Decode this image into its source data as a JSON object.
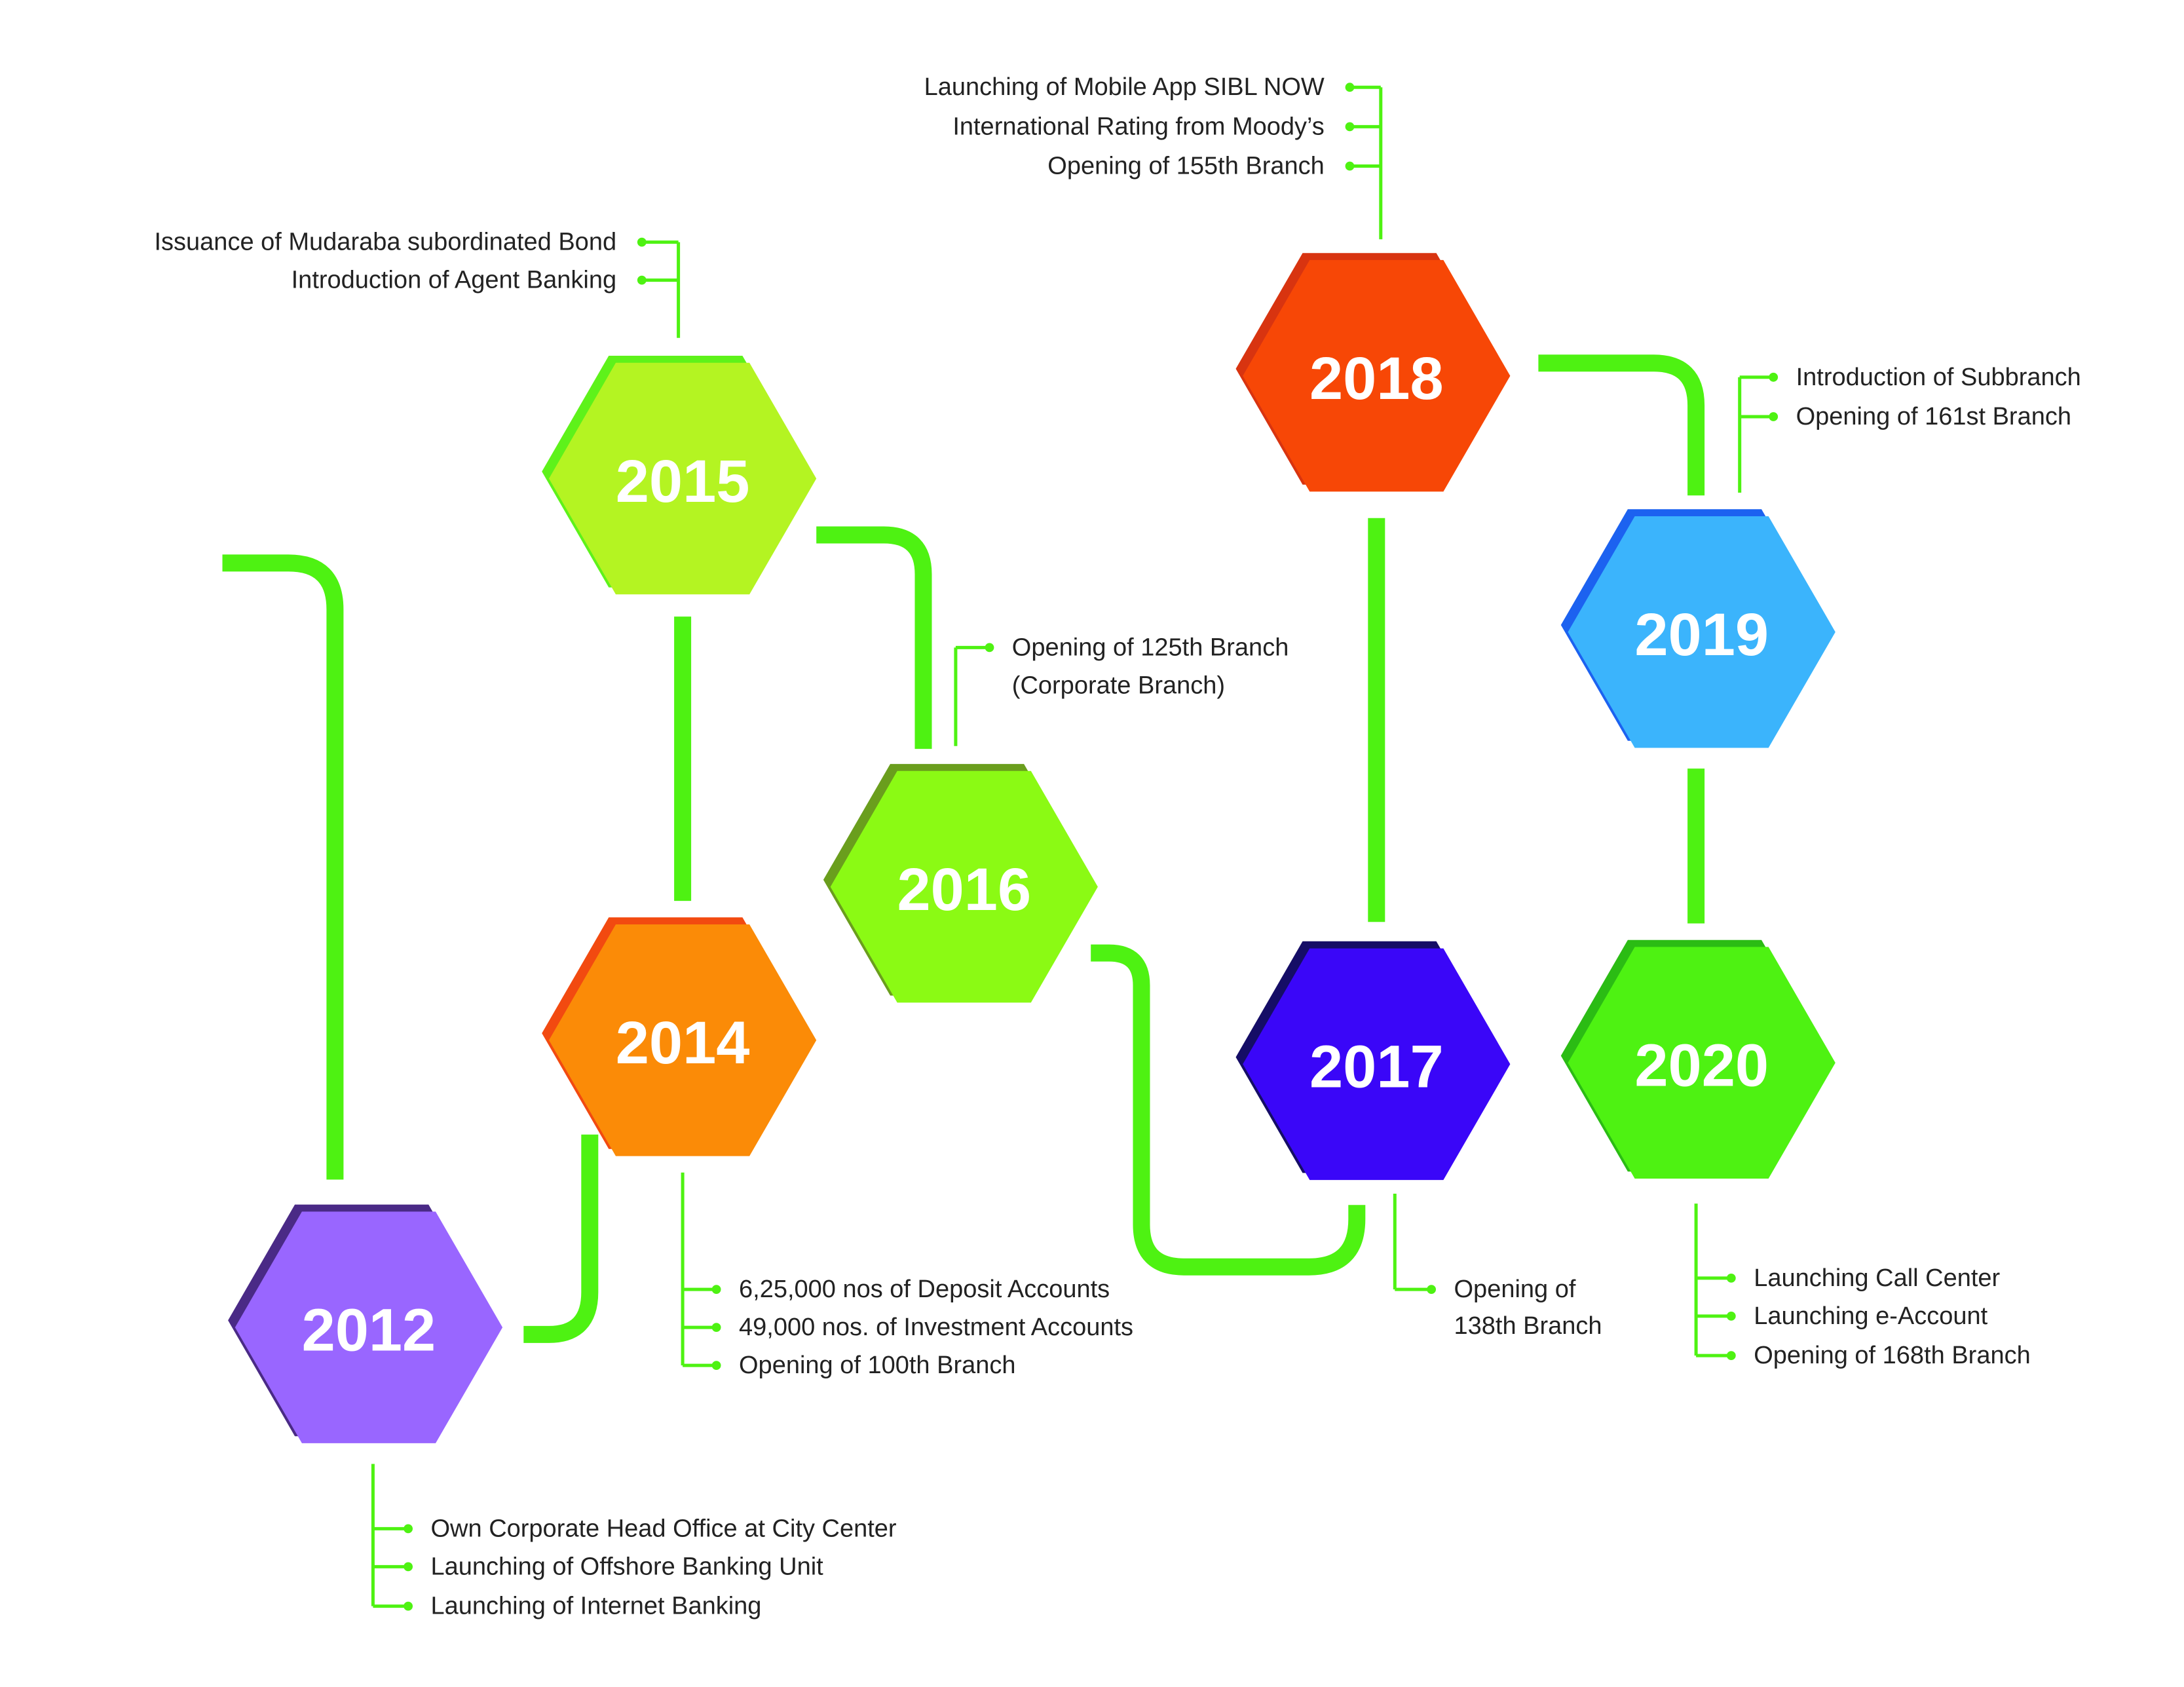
{
  "milestones": [
    {
      "year": "2012",
      "color": "#9966ff",
      "shade": "#4a2a86",
      "notes": [
        "Own Corporate Head Office at City Center",
        "Launching of Offshore Banking Unit",
        "Launching of Internet Banking"
      ]
    },
    {
      "year": "2014",
      "color": "#fb8b07",
      "shade": "#f24a10",
      "notes": [
        "6,25,000 nos of Deposit Accounts",
        "49,000 nos. of Investment Accounts",
        "Opening of 100th Branch"
      ]
    },
    {
      "year": "2015",
      "color": "#b4f422",
      "shade": "#5ef21a",
      "notes": [
        "Issuance of Mudaraba subordinated Bond",
        "Introduction of Agent Banking"
      ]
    },
    {
      "year": "2016",
      "color": "#8bfa14",
      "shade": "#6a9e1d",
      "notes": [
        "Opening of 125th Branch",
        "(Corporate Branch)"
      ]
    },
    {
      "year": "2017",
      "color": "#3a06f8",
      "shade": "#150d66",
      "notes": [
        "Opening of",
        "138th Branch"
      ]
    },
    {
      "year": "2018",
      "color": "#f74706",
      "shade": "#d83410",
      "notes": [
        "Launching of Mobile App SIBL NOW",
        "International Rating from Moody’s",
        "Opening of 155th Branch"
      ]
    },
    {
      "year": "2019",
      "color": "#3bb4fc",
      "shade": "#1c62f0",
      "notes": [
        "Introduction of Subbranch",
        "Opening of 161st Branch"
      ]
    },
    {
      "year": "2020",
      "color": "#4ef212",
      "shade": "#2bbc14",
      "notes": [
        "Launching Call Center",
        "Launching e-Account",
        "Opening of 168th Branch"
      ]
    }
  ],
  "connector_color": "#4ef212"
}
